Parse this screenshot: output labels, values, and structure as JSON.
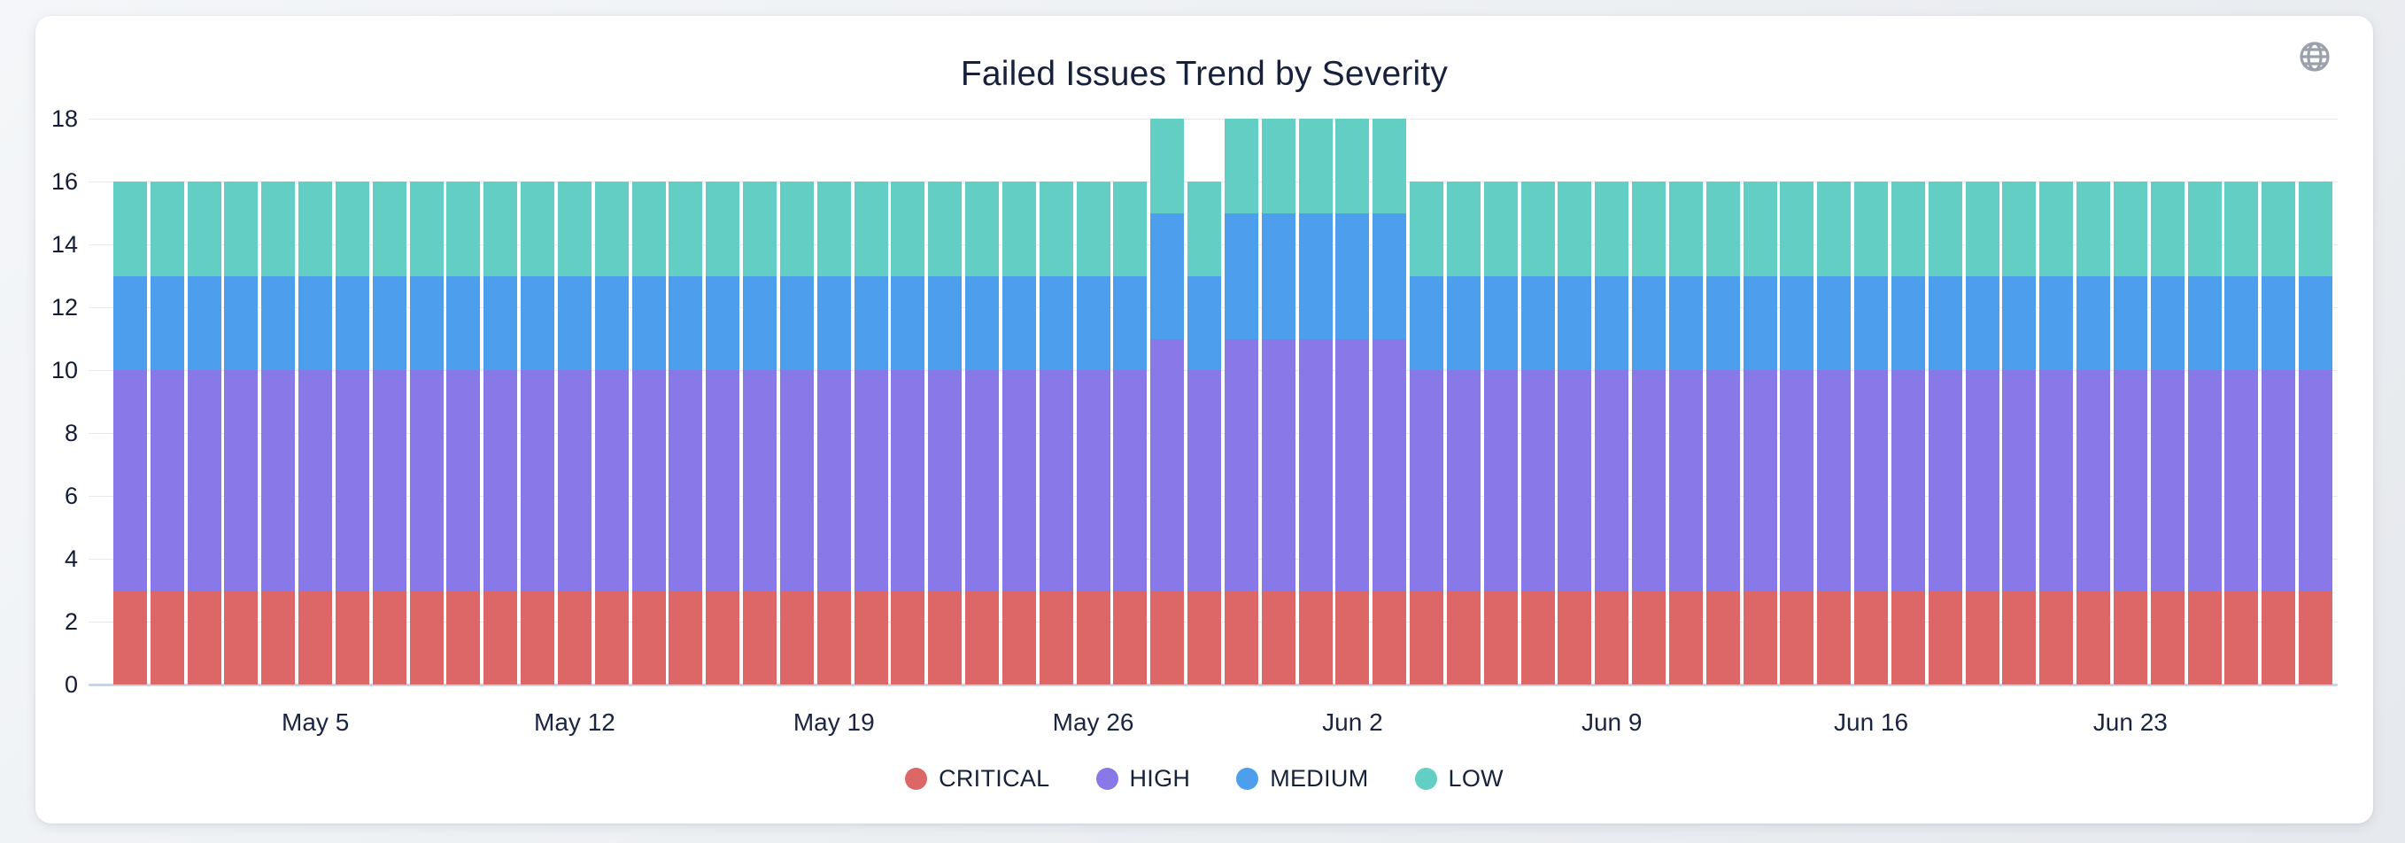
{
  "header": {
    "title": "Failed Issues Trend by Severity"
  },
  "icons": {
    "globe_color": "#9aa1ac"
  },
  "axes": {
    "y_ticks": [
      0,
      2,
      4,
      6,
      8,
      10,
      12,
      14,
      16,
      18
    ],
    "x_ticks": [
      "May 5",
      "May 12",
      "May 19",
      "May 26",
      "Jun 2",
      "Jun 9",
      "Jun 16",
      "Jun 23"
    ]
  },
  "legend": {
    "items": [
      {
        "label": "CRITICAL",
        "color": "#dd6767"
      },
      {
        "label": "HIGH",
        "color": "#8979e8"
      },
      {
        "label": "MEDIUM",
        "color": "#4d9fed"
      },
      {
        "label": "LOW",
        "color": "#63cec3"
      }
    ]
  },
  "chart_data": {
    "type": "bar",
    "stacked": true,
    "title": "Failed Issues Trend by Severity",
    "xlabel": "",
    "ylabel": "",
    "ylim": [
      0,
      18
    ],
    "y_tick_step": 2,
    "grid": true,
    "legend_position": "bottom",
    "x": [
      "Apr 30",
      "May 1",
      "May 2",
      "May 3",
      "May 4",
      "May 5",
      "May 6",
      "May 7",
      "May 8",
      "May 9",
      "May 10",
      "May 11",
      "May 12",
      "May 13",
      "May 14",
      "May 15",
      "May 16",
      "May 17",
      "May 18",
      "May 19",
      "May 20",
      "May 21",
      "May 22",
      "May 23",
      "May 24",
      "May 25",
      "May 26",
      "May 27",
      "May 28",
      "May 29",
      "May 30",
      "May 31",
      "Jun 1",
      "Jun 2",
      "Jun 3",
      "Jun 4",
      "Jun 5",
      "Jun 6",
      "Jun 7",
      "Jun 8",
      "Jun 9",
      "Jun 10",
      "Jun 11",
      "Jun 12",
      "Jun 13",
      "Jun 14",
      "Jun 15",
      "Jun 16",
      "Jun 17",
      "Jun 18",
      "Jun 19",
      "Jun 20",
      "Jun 21",
      "Jun 22",
      "Jun 23",
      "Jun 24",
      "Jun 25",
      "Jun 26",
      "Jun 27",
      "Jun 28"
    ],
    "x_tick_labels": [
      "May 5",
      "May 12",
      "May 19",
      "May 26",
      "Jun 2",
      "Jun 9",
      "Jun 16",
      "Jun 23"
    ],
    "x_tick_indices": [
      5,
      12,
      19,
      26,
      33,
      40,
      47,
      54
    ],
    "series": [
      {
        "name": "CRITICAL",
        "color": "#dd6767",
        "values": [
          3,
          3,
          3,
          3,
          3,
          3,
          3,
          3,
          3,
          3,
          3,
          3,
          3,
          3,
          3,
          3,
          3,
          3,
          3,
          3,
          3,
          3,
          3,
          3,
          3,
          3,
          3,
          3,
          3,
          3,
          3,
          3,
          3,
          3,
          3,
          3,
          3,
          3,
          3,
          3,
          3,
          3,
          3,
          3,
          3,
          3,
          3,
          3,
          3,
          3,
          3,
          3,
          3,
          3,
          3,
          3,
          3,
          3,
          3,
          3
        ]
      },
      {
        "name": "HIGH",
        "color": "#8979e8",
        "values": [
          7,
          7,
          7,
          7,
          7,
          7,
          7,
          7,
          7,
          7,
          7,
          7,
          7,
          7,
          7,
          7,
          7,
          7,
          7,
          7,
          7,
          7,
          7,
          7,
          7,
          7,
          7,
          7,
          8,
          7,
          8,
          8,
          8,
          8,
          8,
          7,
          7,
          7,
          7,
          7,
          7,
          7,
          7,
          7,
          7,
          7,
          7,
          7,
          7,
          7,
          7,
          7,
          7,
          7,
          7,
          7,
          7,
          7,
          7,
          7
        ]
      },
      {
        "name": "MEDIUM",
        "color": "#4d9fed",
        "values": [
          3,
          3,
          3,
          3,
          3,
          3,
          3,
          3,
          3,
          3,
          3,
          3,
          3,
          3,
          3,
          3,
          3,
          3,
          3,
          3,
          3,
          3,
          3,
          3,
          3,
          3,
          3,
          3,
          4,
          3,
          4,
          4,
          4,
          4,
          4,
          3,
          3,
          3,
          3,
          3,
          3,
          3,
          3,
          3,
          3,
          3,
          3,
          3,
          3,
          3,
          3,
          3,
          3,
          3,
          3,
          3,
          3,
          3,
          3,
          3
        ]
      },
      {
        "name": "LOW",
        "color": "#63cec3",
        "values": [
          3,
          3,
          3,
          3,
          3,
          3,
          3,
          3,
          3,
          3,
          3,
          3,
          3,
          3,
          3,
          3,
          3,
          3,
          3,
          3,
          3,
          3,
          3,
          3,
          3,
          3,
          3,
          3,
          3,
          3,
          3,
          3,
          3,
          3,
          3,
          3,
          3,
          3,
          3,
          3,
          3,
          3,
          3,
          3,
          3,
          3,
          3,
          3,
          3,
          3,
          3,
          3,
          3,
          3,
          3,
          3,
          3,
          3,
          3,
          3
        ]
      }
    ]
  }
}
